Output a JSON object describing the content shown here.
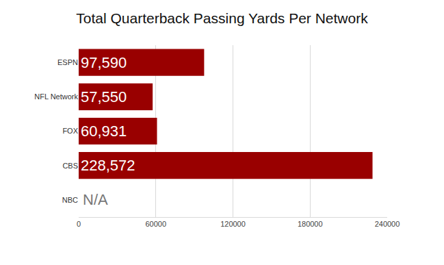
{
  "chart_data": {
    "type": "bar",
    "orientation": "horizontal",
    "title": "Total Quarterback Passing Yards Per Network",
    "categories": [
      "ESPN",
      "NFL Network",
      "FOX",
      "CBS",
      "NBC"
    ],
    "values": [
      97590,
      57550,
      60931,
      228572,
      null
    ],
    "value_labels": [
      "97,590",
      "57,550",
      "60,931",
      "228,572",
      "N/A"
    ],
    "data_labels": true,
    "color": "#990000",
    "xlim": [
      0,
      240000
    ],
    "xticks": [
      0,
      60000,
      120000,
      180000,
      240000
    ],
    "grid": true
  }
}
